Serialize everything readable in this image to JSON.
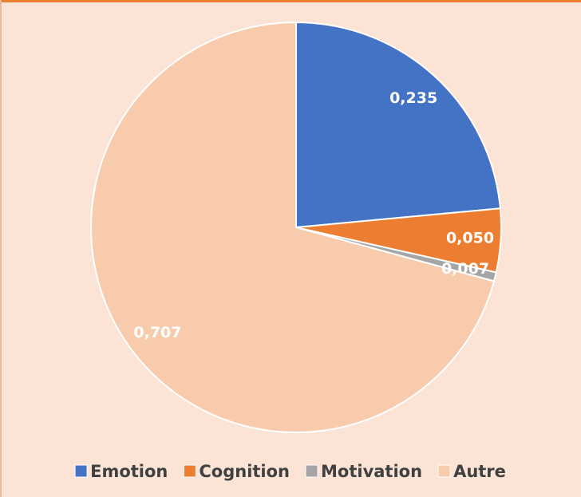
{
  "chart_data": {
    "type": "pie",
    "categories": [
      "Emotion",
      "Cognition",
      "Motivation",
      "Autre"
    ],
    "values": [
      0.235,
      0.05,
      0.007,
      0.707
    ],
    "value_labels": [
      "0,235",
      "0,050",
      "0,007",
      "0,707"
    ],
    "colors": [
      "#4472c4",
      "#ed7d31",
      "#a5a5a5",
      "#f8cbad"
    ],
    "legend": "bottom"
  }
}
